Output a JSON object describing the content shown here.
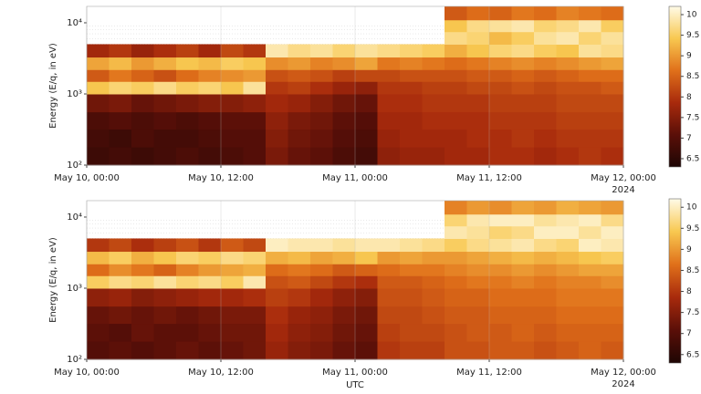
{
  "chart_data": [
    {
      "type": "heatmap",
      "y_label": "Energy (E/q, in eV)",
      "x_note": "2024",
      "xlim": [
        0,
        48
      ],
      "xticks": [
        {
          "value": 0,
          "label": "May 10, 00:00"
        },
        {
          "value": 12,
          "label": "May 10, 12:00"
        },
        {
          "value": 24,
          "label": "May 11, 00:00"
        },
        {
          "value": 36,
          "label": "May 11, 12:00"
        },
        {
          "value": 48,
          "label": "May 12, 00:00"
        }
      ],
      "ylim": [
        100,
        17000
      ],
      "log_y": true,
      "yticks": [
        {
          "value": 100,
          "label": "10²"
        },
        {
          "value": 1000,
          "label": "10³"
        },
        {
          "value": 10000,
          "label": "10⁴"
        }
      ],
      "grid": true,
      "x_bins": [
        0,
        2,
        4,
        6,
        8,
        10,
        12,
        14,
        16,
        18,
        20,
        22,
        24,
        26,
        28,
        30,
        32,
        34,
        36,
        38,
        40,
        42,
        44,
        46,
        48
      ],
      "y_bins": [
        100,
        180,
        320,
        560,
        1000,
        1500,
        2200,
        3300,
        5000,
        7500,
        11000,
        17000
      ],
      "z": [
        [
          6.7,
          6.8,
          6.9,
          7.3,
          9.4,
          8.4,
          9.1,
          7.8,
          null,
          null,
          null
        ],
        [
          6.8,
          6.7,
          7.0,
          7.4,
          9.6,
          8.7,
          9.3,
          8.0,
          null,
          null,
          null
        ],
        [
          6.7,
          6.9,
          6.9,
          7.2,
          9.5,
          8.5,
          9.0,
          7.7,
          null,
          null,
          null
        ],
        [
          6.8,
          6.8,
          7.0,
          7.3,
          9.7,
          8.3,
          9.2,
          7.9,
          null,
          null,
          null
        ],
        [
          6.9,
          6.8,
          6.9,
          7.4,
          9.5,
          8.6,
          9.4,
          8.1,
          null,
          null,
          null
        ],
        [
          6.8,
          6.9,
          7.0,
          7.5,
          9.6,
          8.8,
          9.3,
          7.8,
          null,
          null,
          null
        ],
        [
          6.9,
          7.0,
          7.1,
          7.5,
          9.4,
          8.9,
          9.5,
          8.2,
          null,
          null,
          null
        ],
        [
          7.0,
          7.0,
          7.1,
          7.6,
          9.8,
          9.0,
          9.4,
          8.0,
          null,
          null,
          null
        ],
        [
          7.4,
          7.5,
          7.6,
          7.8,
          8.0,
          8.3,
          8.9,
          9.9,
          null,
          null,
          null
        ],
        [
          7.2,
          7.3,
          7.4,
          7.7,
          8.1,
          8.4,
          9.0,
          9.7,
          null,
          null,
          null
        ],
        [
          7.1,
          7.2,
          7.3,
          7.5,
          7.9,
          8.3,
          8.8,
          9.8,
          null,
          null,
          null
        ],
        [
          6.9,
          7.0,
          7.1,
          7.3,
          7.7,
          8.1,
          8.9,
          9.6,
          null,
          null,
          null
        ],
        [
          6.8,
          6.9,
          7.0,
          7.2,
          7.6,
          8.2,
          9.1,
          9.8,
          null,
          null,
          null
        ],
        [
          7.6,
          7.7,
          7.8,
          7.9,
          8.0,
          8.2,
          8.7,
          9.7,
          null,
          null,
          null
        ],
        [
          7.7,
          7.8,
          7.8,
          7.9,
          8.0,
          8.3,
          8.8,
          9.6,
          null,
          null,
          null
        ],
        [
          7.7,
          7.8,
          7.9,
          8.0,
          8.1,
          8.3,
          8.7,
          9.5,
          null,
          null,
          null
        ],
        [
          7.8,
          7.8,
          7.9,
          8.0,
          8.1,
          8.3,
          8.6,
          9.2,
          9.7,
          9.4,
          8.4
        ],
        [
          7.8,
          7.9,
          7.9,
          8.0,
          8.2,
          8.4,
          8.7,
          9.4,
          9.6,
          9.7,
          8.6
        ],
        [
          7.9,
          7.9,
          8.0,
          8.1,
          8.2,
          8.4,
          8.8,
          9.6,
          9.3,
          9.8,
          8.5
        ],
        [
          7.9,
          8.0,
          8.0,
          8.1,
          8.3,
          8.5,
          8.9,
          9.7,
          9.5,
          9.9,
          8.7
        ],
        [
          7.8,
          7.9,
          8.0,
          8.1,
          8.2,
          8.4,
          8.8,
          9.5,
          9.8,
          9.6,
          8.6
        ],
        [
          7.9,
          8.0,
          8.1,
          8.2,
          8.3,
          8.5,
          8.9,
          9.4,
          9.9,
          9.7,
          8.8
        ],
        [
          8.0,
          8.0,
          8.1,
          8.2,
          8.3,
          8.6,
          9.0,
          9.8,
          9.6,
          9.9,
          8.7
        ],
        [
          7.9,
          8.0,
          8.1,
          8.2,
          8.4,
          8.6,
          9.1,
          9.7,
          9.8,
          9.5,
          8.6
        ]
      ],
      "clim": [
        6.3,
        10.2
      ],
      "cticks": [
        6.5,
        7,
        7.5,
        8,
        8.5,
        9,
        9.5,
        10
      ],
      "colormap": [
        "#1e0604",
        "#5a0f08",
        "#a82a0c",
        "#e0701a",
        "#f8c850",
        "#fffbe8"
      ]
    },
    {
      "type": "heatmap",
      "y_label": "Energy (E/q, in eV)",
      "x_label": "UTC",
      "x_note": "2024",
      "xlim": [
        0,
        48
      ],
      "xticks": [
        {
          "value": 0,
          "label": "May 10, 00:00"
        },
        {
          "value": 12,
          "label": "May 10, 12:00"
        },
        {
          "value": 24,
          "label": "May 11, 00:00"
        },
        {
          "value": 36,
          "label": "May 11, 12:00"
        },
        {
          "value": 48,
          "label": "May 12, 00:00"
        }
      ],
      "ylim": [
        100,
        17000
      ],
      "log_y": true,
      "yticks": [
        {
          "value": 100,
          "label": "10²"
        },
        {
          "value": 1000,
          "label": "10³"
        },
        {
          "value": 10000,
          "label": "10⁴"
        }
      ],
      "grid": true,
      "x_bins": [
        0,
        2,
        4,
        6,
        8,
        10,
        12,
        14,
        16,
        18,
        20,
        22,
        24,
        26,
        28,
        30,
        32,
        34,
        36,
        38,
        40,
        42,
        44,
        46,
        48
      ],
      "y_bins": [
        100,
        180,
        320,
        560,
        1000,
        1500,
        2200,
        3300,
        5000,
        7500,
        11000,
        17000
      ],
      "z": [
        [
          7.0,
          7.1,
          7.2,
          7.6,
          9.5,
          8.6,
          9.3,
          8.0,
          null,
          null,
          null
        ],
        [
          7.1,
          7.0,
          7.3,
          7.7,
          9.7,
          8.9,
          9.5,
          8.2,
          null,
          null,
          null
        ],
        [
          7.0,
          7.2,
          7.2,
          7.5,
          9.6,
          8.7,
          9.2,
          7.9,
          null,
          null,
          null
        ],
        [
          7.1,
          7.1,
          7.3,
          7.6,
          9.8,
          8.5,
          9.4,
          8.1,
          null,
          null,
          null
        ],
        [
          7.2,
          7.1,
          7.2,
          7.7,
          9.6,
          8.8,
          9.6,
          8.3,
          null,
          null,
          null
        ],
        [
          7.1,
          7.2,
          7.3,
          7.8,
          9.7,
          9.0,
          9.5,
          8.0,
          null,
          null,
          null
        ],
        [
          7.2,
          7.3,
          7.4,
          7.8,
          9.5,
          9.1,
          9.7,
          8.4,
          null,
          null,
          null
        ],
        [
          7.3,
          7.3,
          7.4,
          7.9,
          9.9,
          9.2,
          9.6,
          8.2,
          null,
          null,
          null
        ],
        [
          7.7,
          7.8,
          7.9,
          8.1,
          8.3,
          8.6,
          9.2,
          10.0,
          null,
          null,
          null
        ],
        [
          7.5,
          7.6,
          7.7,
          8.0,
          8.4,
          8.7,
          9.3,
          9.9,
          null,
          null,
          null
        ],
        [
          7.4,
          7.5,
          7.6,
          7.8,
          8.2,
          8.6,
          9.1,
          9.9,
          null,
          null,
          null
        ],
        [
          7.2,
          7.3,
          7.4,
          7.6,
          8.0,
          8.4,
          9.2,
          9.8,
          null,
          null,
          null
        ],
        [
          7.1,
          7.2,
          7.3,
          7.5,
          7.9,
          8.5,
          9.4,
          9.9,
          null,
          null,
          null
        ],
        [
          8.0,
          8.1,
          8.2,
          8.3,
          8.4,
          8.6,
          9.0,
          9.9,
          null,
          null,
          null
        ],
        [
          8.1,
          8.2,
          8.2,
          8.3,
          8.4,
          8.7,
          9.1,
          9.8,
          null,
          null,
          null
        ],
        [
          8.1,
          8.2,
          8.3,
          8.4,
          8.5,
          8.7,
          9.0,
          9.7,
          null,
          null,
          null
        ],
        [
          8.3,
          8.3,
          8.4,
          8.5,
          8.6,
          8.8,
          9.0,
          9.5,
          9.9,
          9.6,
          8.8
        ],
        [
          8.3,
          8.4,
          8.4,
          8.5,
          8.7,
          8.9,
          9.1,
          9.7,
          9.8,
          9.9,
          9.0
        ],
        [
          8.4,
          8.4,
          8.5,
          8.6,
          8.7,
          8.9,
          9.2,
          9.8,
          9.6,
          10.0,
          8.9
        ],
        [
          8.4,
          8.5,
          8.5,
          8.6,
          8.8,
          9.0,
          9.3,
          9.9,
          9.7,
          10.0,
          9.1
        ],
        [
          8.3,
          8.4,
          8.5,
          8.6,
          8.7,
          8.9,
          9.2,
          9.7,
          10.0,
          9.8,
          9.0
        ],
        [
          8.4,
          8.5,
          8.6,
          8.7,
          8.8,
          9.0,
          9.3,
          9.6,
          10.0,
          9.9,
          9.2
        ],
        [
          8.5,
          8.5,
          8.6,
          8.7,
          8.8,
          9.1,
          9.4,
          10.0,
          9.8,
          10.0,
          9.1
        ],
        [
          8.4,
          8.5,
          8.6,
          8.7,
          8.9,
          9.1,
          9.5,
          9.9,
          10.0,
          9.7,
          9.0
        ]
      ],
      "clim": [
        6.3,
        10.2
      ],
      "cticks": [
        6.5,
        7,
        7.5,
        8,
        8.5,
        9,
        9.5,
        10
      ],
      "colormap": [
        "#1e0604",
        "#5a0f08",
        "#a82a0c",
        "#e0701a",
        "#f8c850",
        "#fffbe8"
      ]
    }
  ]
}
